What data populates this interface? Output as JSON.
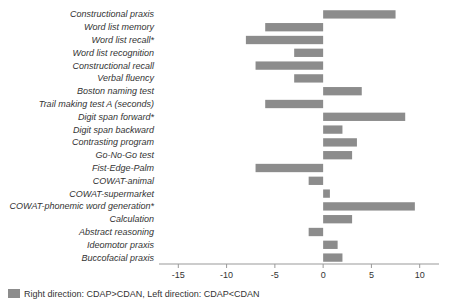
{
  "chart_data": {
    "type": "bar",
    "orientation": "horizontal",
    "categories": [
      "Constructional praxis",
      "Word list memory",
      "Word list recall*",
      "Word list recognition",
      "Constructional recall",
      "Verbal fluency",
      "Boston naming test",
      "Trail making test A (seconds)",
      "Digit span forward*",
      "Digit span backward",
      "Contrasting program",
      "Go-No-Go test",
      "Fist-Edge-Palm",
      "COWAT-animal",
      "COWAT-supermarket",
      "COWAT-phonemic word generation*",
      "Calculation",
      "Abstract reasoning",
      "Ideomotor praxis",
      "Buccofacial praxis"
    ],
    "series": [
      {
        "name": "Right direction: CDAP>CDAN, Left direction: CDAP<CDAN",
        "color": "#8c8c8c",
        "values": [
          7.5,
          -6.0,
          -8.0,
          -3.0,
          -7.0,
          -3.0,
          4.0,
          -6.0,
          8.5,
          2.0,
          3.5,
          3.0,
          -7.0,
          -1.5,
          0.7,
          9.5,
          3.0,
          -1.5,
          1.5,
          2.0
        ]
      }
    ],
    "xlim": [
      -17,
      12
    ],
    "xticks": [
      -15,
      -10,
      -5,
      0,
      5,
      10
    ],
    "legend": "lower left"
  }
}
